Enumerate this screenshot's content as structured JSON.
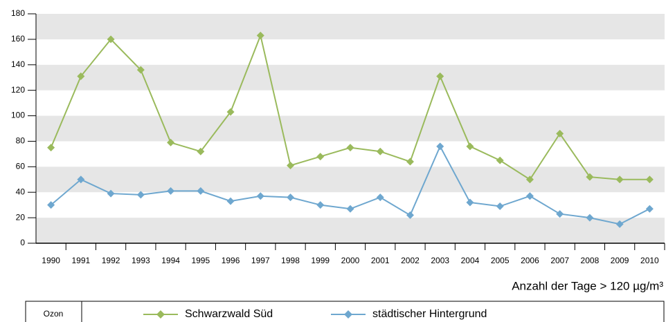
{
  "chart_data": {
    "type": "line",
    "categories": [
      "1990",
      "1991",
      "1992",
      "1993",
      "1994",
      "1995",
      "1996",
      "1997",
      "1998",
      "1999",
      "2000",
      "2001",
      "2002",
      "2003",
      "2004",
      "2005",
      "2006",
      "2007",
      "2008",
      "2009",
      "2010"
    ],
    "series": [
      {
        "name": "Schwarzwald Süd",
        "color": "#9aba5c",
        "values": [
          75,
          131,
          160,
          136,
          79,
          72,
          103,
          163,
          61,
          68,
          75,
          72,
          64,
          131,
          76,
          65,
          50,
          86,
          52,
          50,
          50
        ]
      },
      {
        "name": "städtischer Hintergrund",
        "color": "#6ea7cf",
        "values": [
          30,
          50,
          39,
          38,
          41,
          41,
          33,
          37,
          36,
          30,
          27,
          36,
          22,
          76,
          32,
          29,
          37,
          23,
          20,
          15,
          27
        ]
      }
    ],
    "ylim": [
      0,
      180
    ],
    "yticks": [
      0,
      20,
      40,
      60,
      80,
      100,
      120,
      140,
      160,
      180
    ],
    "unit_label": "Anzahl der Tage > 120 µg/m³",
    "legend_title": "Ozon",
    "grid": true
  }
}
